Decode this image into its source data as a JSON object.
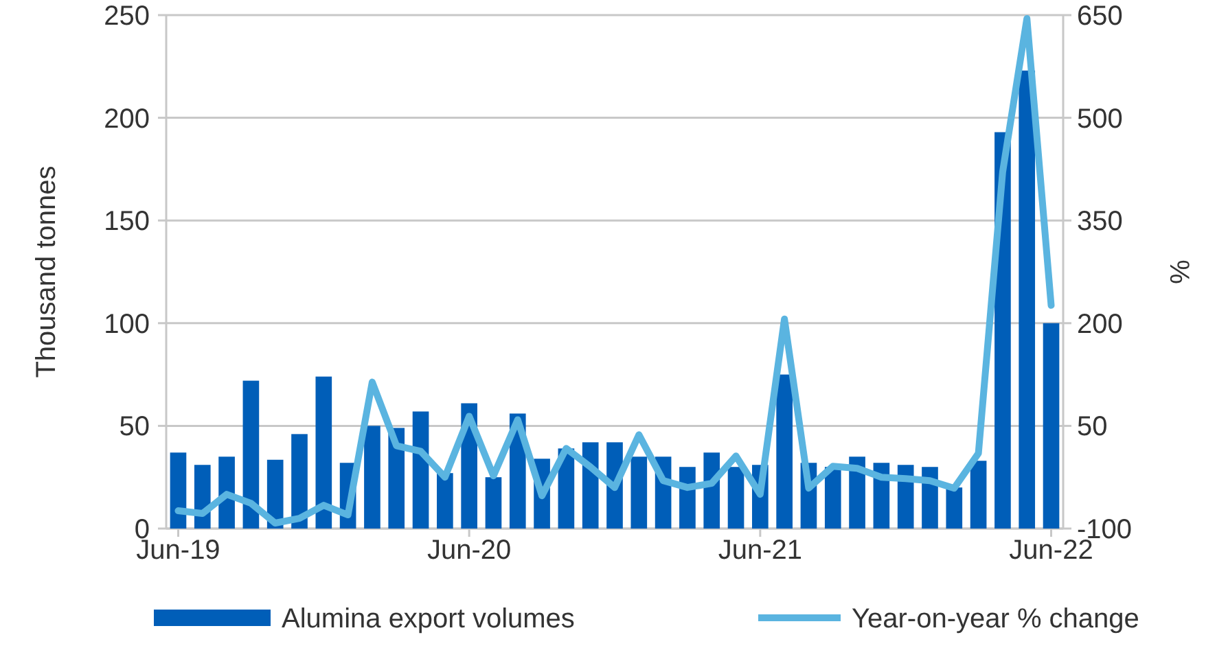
{
  "chart_data": {
    "type": "bar",
    "categories": [
      "Jun-19",
      null,
      null,
      null,
      null,
      null,
      null,
      null,
      null,
      null,
      null,
      null,
      "Jun-20",
      null,
      null,
      null,
      null,
      null,
      null,
      null,
      null,
      null,
      null,
      null,
      "Jun-21",
      null,
      null,
      null,
      null,
      null,
      null,
      null,
      null,
      null,
      null,
      null,
      "Jun-22"
    ],
    "ylabel": "Thousand tonnes",
    "y2label": "%",
    "series": [
      {
        "name": "Alumina export volumes",
        "color": "#005eb8",
        "values": [
          37,
          31,
          35,
          72,
          33.5,
          46,
          74,
          32,
          50,
          49,
          57,
          27,
          61,
          25,
          56,
          34,
          39,
          42,
          42,
          35,
          35,
          30,
          37,
          30,
          31,
          75,
          32,
          30,
          35,
          32,
          31,
          30,
          20,
          33,
          193,
          223,
          100
        ]
      },
      {
        "name": "Year-on-year % change",
        "type": "line",
        "axis": "y2",
        "color": "#5ab4e0",
        "values": [
          -74,
          -78,
          -50,
          -63,
          -92,
          -85,
          -66,
          -80,
          114,
          21,
          13,
          -25,
          64,
          -23,
          59,
          -52,
          17,
          -10,
          -40,
          37,
          -30,
          -40,
          -34,
          6,
          -50,
          206,
          -41,
          -9,
          -12,
          -25,
          -27,
          -30,
          -41,
          10,
          421,
          645,
          226
        ]
      }
    ],
    "ylim": [
      0,
      250
    ],
    "yticks": [
      0,
      50,
      100,
      150,
      200,
      250
    ],
    "y2lim": [
      -100,
      650
    ],
    "y2ticks": [
      -100,
      50,
      200,
      350,
      500,
      650
    ],
    "grid": "y",
    "legend": "bottom"
  }
}
